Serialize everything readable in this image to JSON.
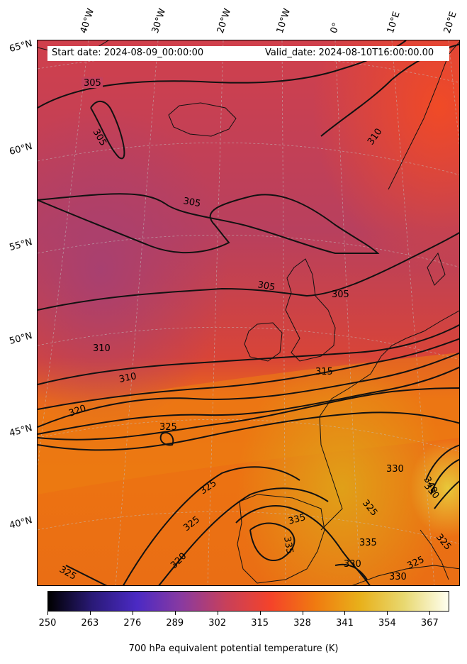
{
  "header": {
    "start_date": "Start date: 2024-08-09_00:00:00",
    "valid_date": "Valid_date: 2024-08-10T16:00:00.00"
  },
  "longitude_labels": [
    "40°W",
    "30°W",
    "20°W",
    "10°W",
    "0°",
    "10°E",
    "20°E"
  ],
  "latitude_labels": [
    "65°N",
    "60°N",
    "55°N",
    "50°N",
    "45°N",
    "40°N"
  ],
  "contour_labels": [
    "305",
    "305",
    "305",
    "305",
    "305",
    "310",
    "310",
    "310",
    "315",
    "320",
    "320",
    "325",
    "325",
    "325",
    "325",
    "325",
    "330",
    "335",
    "335",
    "335",
    "325",
    "330",
    "330",
    "340",
    "325",
    "330"
  ],
  "colorbar": {
    "ticks": [
      "250",
      "263",
      "276",
      "289",
      "302",
      "315",
      "328",
      "341",
      "354",
      "367"
    ],
    "title": "700 hPa equivalent potential temperature (K)",
    "min": 250,
    "max": 373,
    "colors": [
      "#000000",
      "#2a1a78",
      "#4b2ac4",
      "#8a3aa0",
      "#c8405a",
      "#f4432a",
      "#f07a10",
      "#e8b01a",
      "#e8d870",
      "#fffff0"
    ]
  }
}
